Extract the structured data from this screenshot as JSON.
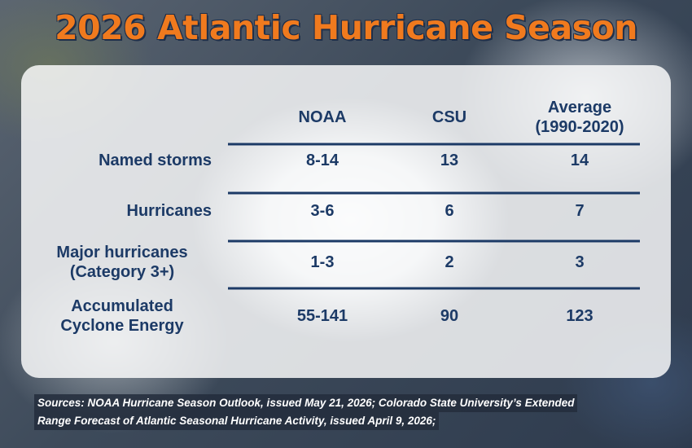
{
  "title": "2026 Atlantic Hurricane Season",
  "colors": {
    "title": "#f07a1e",
    "text": "#1c3a66",
    "rule": "#1c3a66"
  },
  "chart_data": {
    "type": "table",
    "title": "2026 Atlantic Hurricane Season",
    "columns": [
      "NOAA",
      "CSU",
      "Average (1990-2020)"
    ],
    "column_lines": [
      [
        "NOAA"
      ],
      [
        "CSU"
      ],
      [
        "Average",
        "(1990-2020)"
      ]
    ],
    "rows": [
      {
        "label_lines": [
          "Named storms"
        ],
        "values": [
          "8-14",
          "13",
          "14"
        ]
      },
      {
        "label_lines": [
          "Hurricanes"
        ],
        "values": [
          "3-6",
          "6",
          "7"
        ]
      },
      {
        "label_lines": [
          "Major hurricanes",
          "(Category 3+)"
        ],
        "values": [
          "1-3",
          "2",
          "3"
        ]
      },
      {
        "label_lines": [
          "Accumulated",
          "Cyclone Energy"
        ],
        "values": [
          "55-141",
          "90",
          "123"
        ]
      }
    ]
  },
  "sources": {
    "line1": "Sources: NOAA Hurricane Season Outlook, issued May 21, 2026; Colorado State University’s Extended",
    "line2": "Range Forecast of Atlantic Seasonal Hurricane Activity, issued April 9, 2026;"
  }
}
